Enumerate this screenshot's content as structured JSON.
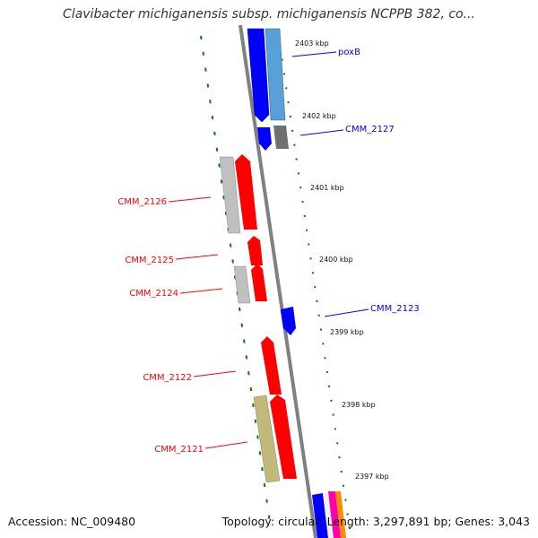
{
  "title": "Clavibacter michiganensis subsp. michiganensis NCPPB 382, co...",
  "footer": {
    "accession": "Accession: NC_009480",
    "summary": "Topology: circular; Length: 3,297,891 bp; Genes: 3,043"
  },
  "colors": {
    "forward_cds": "#0000ff",
    "reverse_cds": "#ff0000",
    "tick": "#008000",
    "backbone": "#808080",
    "gray_feature": "#c0c0c0",
    "olive_feature": "#c2b87a"
  },
  "ticks": [
    "2403 kbp",
    "2402 kbp",
    "2401 kbp",
    "2400 kbp",
    "2399 kbp",
    "2398 kbp",
    "2397 kbp"
  ],
  "gene_labels": [
    "poxB",
    "CMM_2127",
    "CMM_2126",
    "CMM_2125",
    "CMM_2124",
    "CMM_2123",
    "CMM_2122",
    "CMM_2121"
  ]
}
